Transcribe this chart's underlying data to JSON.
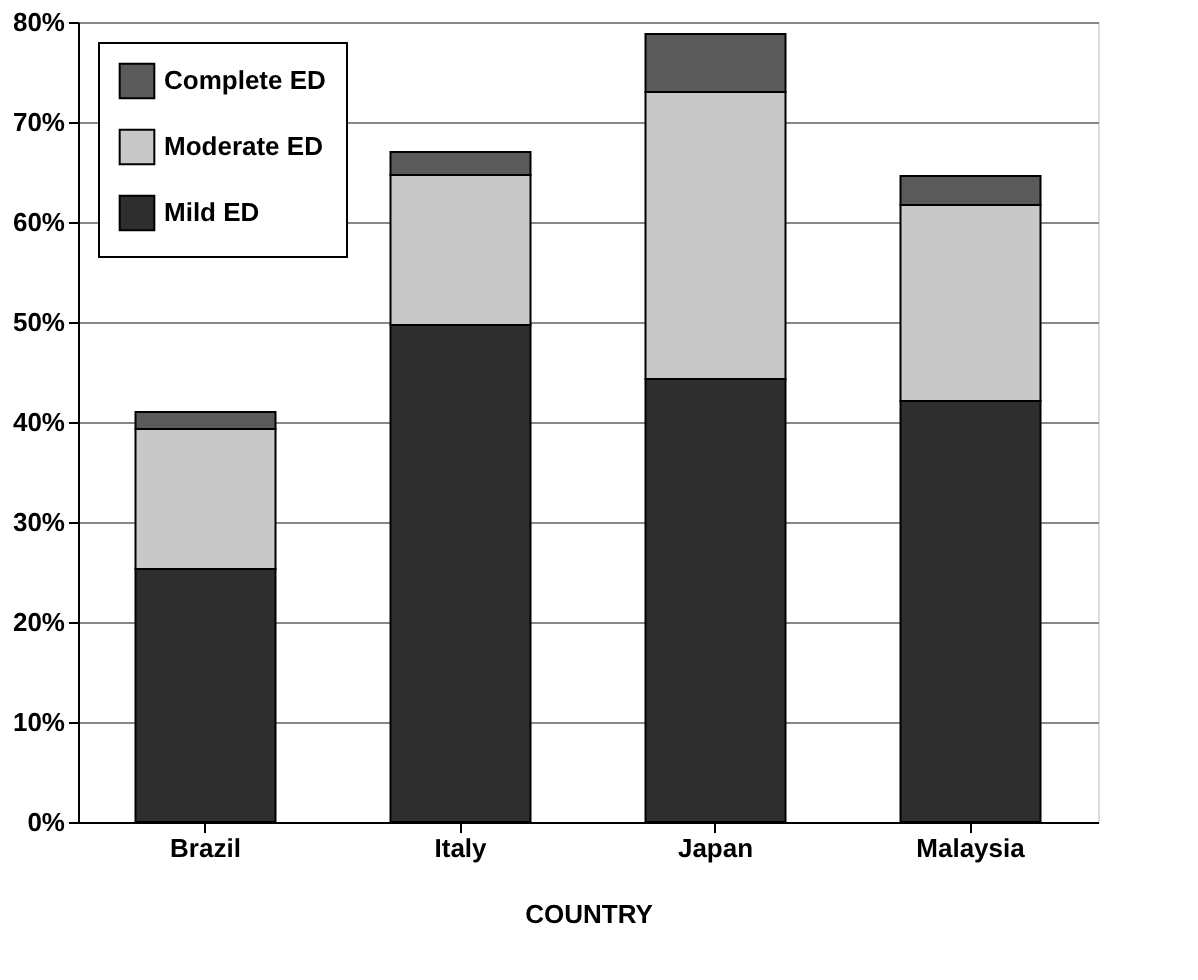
{
  "chart_data": {
    "type": "bar",
    "stacked": true,
    "xlabel": "COUNTRY",
    "categories": [
      "Brazil",
      "Italy",
      "Japan",
      "Malaysia"
    ],
    "series": [
      {
        "name": "Mild ED",
        "color": "#2e2e2e",
        "values": [
          25.3,
          49.7,
          44.3,
          42.1
        ]
      },
      {
        "name": "Moderate ED",
        "color": "#c8c8c8",
        "values": [
          14.0,
          15.0,
          28.7,
          19.6
        ]
      },
      {
        "name": "Complete ED",
        "color": "#5a5a5a",
        "values": [
          1.7,
          2.3,
          5.8,
          2.9
        ]
      }
    ],
    "ylim": [
      0,
      80
    ],
    "yticks": [
      {
        "value": 0,
        "label": "0%"
      },
      {
        "value": 10,
        "label": "10%"
      },
      {
        "value": 20,
        "label": "20%"
      },
      {
        "value": 30,
        "label": "30%"
      },
      {
        "value": 40,
        "label": "40%"
      },
      {
        "value": 50,
        "label": "50%"
      },
      {
        "value": 60,
        "label": "60%"
      },
      {
        "value": 70,
        "label": "70%"
      },
      {
        "value": 80,
        "label": "80%"
      }
    ],
    "grid": "y",
    "legend": "top left"
  }
}
